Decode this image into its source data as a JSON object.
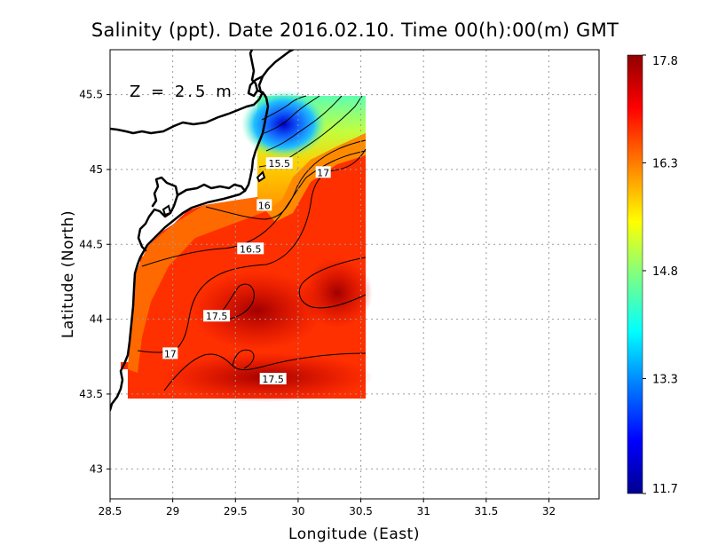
{
  "chart_data": {
    "type": "heatmap",
    "title": "Salinity (ppt). Date 2016.02.10. Time 00(h):00(m)  GMT",
    "depth_label": "Z  =  2.5  m",
    "xlabel": "Longitude (East)",
    "ylabel": "Latitude (North)",
    "xlim": [
      28.5,
      32.4
    ],
    "ylim": [
      42.8,
      45.8
    ],
    "xticks": [
      {
        "value": 28.5,
        "label": "28.5"
      },
      {
        "value": 29,
        "label": "29"
      },
      {
        "value": 29.5,
        "label": "29.5"
      },
      {
        "value": 30,
        "label": "30"
      },
      {
        "value": 30.5,
        "label": "30.5"
      },
      {
        "value": 31,
        "label": "31"
      },
      {
        "value": 31.5,
        "label": "31.5"
      },
      {
        "value": 32,
        "label": "32"
      }
    ],
    "yticks": [
      {
        "value": 43,
        "label": "43"
      },
      {
        "value": 43.5,
        "label": "43.5"
      },
      {
        "value": 44,
        "label": "44"
      },
      {
        "value": 44.5,
        "label": "44.5"
      },
      {
        "value": 45,
        "label": "45"
      },
      {
        "value": 45.5,
        "label": "45.5"
      }
    ],
    "grid": true,
    "colorbar": {
      "min": 11.7,
      "max": 17.8,
      "ticks": [
        {
          "value": 17.8,
          "label": "17.8"
        },
        {
          "value": 16.3,
          "label": "16.3"
        },
        {
          "value": 14.8,
          "label": "14.8"
        },
        {
          "value": 13.3,
          "label": "13.3"
        },
        {
          "value": 11.7,
          "label": "11.7"
        }
      ],
      "colors": [
        "#00008f",
        "#0000ff",
        "#0080ff",
        "#00ffff",
        "#80ff80",
        "#ffff00",
        "#ff8000",
        "#ff0000",
        "#8f0000"
      ]
    },
    "contour_labels": [
      {
        "label": "15.5",
        "lon": 29.85,
        "lat": 45.04
      },
      {
        "label": "17",
        "lon": 30.2,
        "lat": 44.98
      },
      {
        "label": "16",
        "lon": 29.73,
        "lat": 44.76
      },
      {
        "label": "16.5",
        "lon": 29.62,
        "lat": 44.47
      },
      {
        "label": "17.5",
        "lon": 29.35,
        "lat": 44.02
      },
      {
        "label": "17",
        "lon": 28.98,
        "lat": 43.77
      },
      {
        "label": "17.5",
        "lon": 29.8,
        "lat": 43.6
      }
    ]
  }
}
